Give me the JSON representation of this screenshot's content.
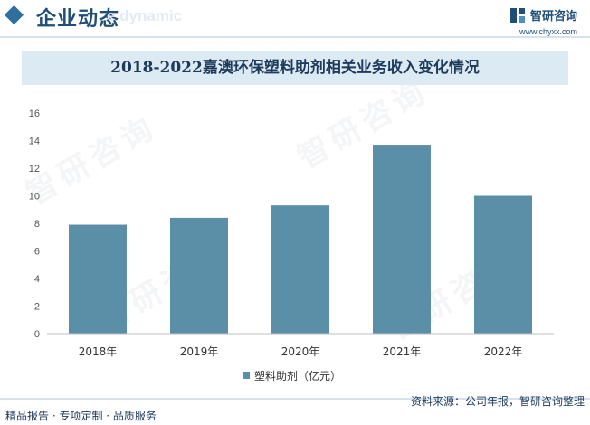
{
  "header": {
    "section_title": "企业动态",
    "section_subtitle": "e dynamic",
    "brand_name": "智研咨询",
    "brand_url": "www.chyxx.com"
  },
  "footer": {
    "left": "精品报告 · 专项定制 · 品质服务",
    "right": "资料来源：公司年报，智研咨询整理"
  },
  "watermark_text": "智研咨询",
  "colors": {
    "bar": "#5b8fa8",
    "accent": "#1f4e79",
    "title_band": "#dceaf4"
  },
  "chart_data": {
    "type": "bar",
    "title": "2018-2022嘉澳环保塑料助剂相关业务收入变化情况",
    "categories": [
      "2018年",
      "2019年",
      "2020年",
      "2021年",
      "2022年"
    ],
    "series": [
      {
        "name": "塑料助剂（亿元）",
        "values": [
          7.9,
          8.4,
          9.3,
          13.7,
          10.0
        ]
      }
    ],
    "yticks": [
      "0",
      "2",
      "4",
      "6",
      "8",
      "10",
      "12",
      "14",
      "16"
    ],
    "ylim": [
      0,
      16
    ],
    "xlabel": "",
    "ylabel": "",
    "grid": false,
    "legend_position": "bottom"
  }
}
